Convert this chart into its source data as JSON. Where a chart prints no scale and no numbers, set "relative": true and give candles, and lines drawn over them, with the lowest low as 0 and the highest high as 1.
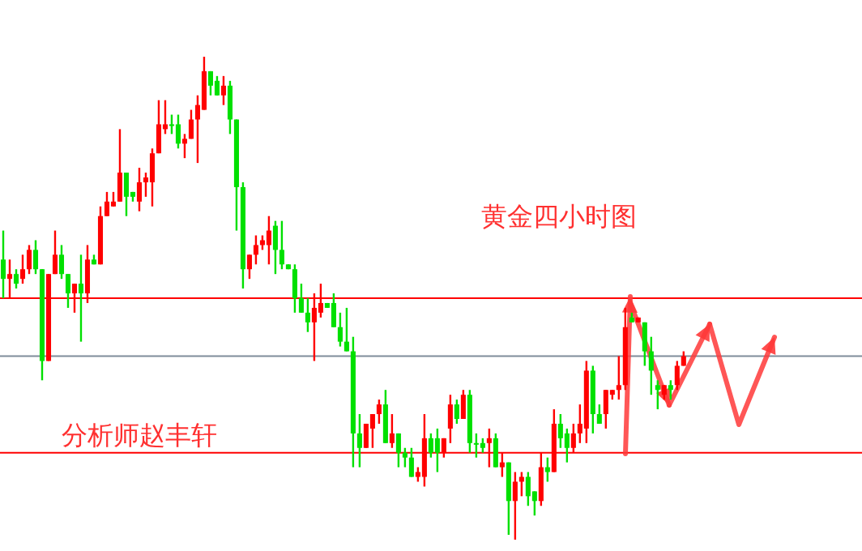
{
  "chart_data": {
    "type": "candlestick",
    "title": "黄金四小时图",
    "relative": true,
    "annotations": [
      "分析师赵丰轩"
    ],
    "ref_lines": [
      {
        "axis": "y",
        "value": 0.5,
        "label": null,
        "color": "#ff0000"
      },
      {
        "axis": "y",
        "value": 0.38,
        "label": null,
        "color": "#7f8c9a"
      },
      {
        "axis": "y",
        "value": 0.18,
        "label": null,
        "color": "#ff0000"
      }
    ],
    "categories": [
      null,
      null,
      null,
      null,
      null,
      null,
      null,
      null,
      null,
      null,
      null,
      null,
      null,
      null,
      null,
      null,
      null,
      null,
      null,
      null,
      null,
      null,
      null,
      null,
      null,
      null,
      null,
      null,
      null,
      null,
      null,
      null,
      null,
      null,
      null,
      null,
      null,
      null,
      null,
      null,
      null,
      null,
      null,
      null,
      null,
      null,
      null,
      null,
      null,
      null,
      null,
      null,
      null,
      null,
      null,
      null,
      null,
      null,
      null,
      null,
      null,
      null,
      null,
      null,
      null,
      null,
      null,
      null,
      null,
      null,
      null,
      null,
      null,
      null,
      null,
      null,
      null,
      null,
      null,
      null,
      null,
      null,
      null,
      null,
      null,
      null,
      null,
      null,
      null,
      null,
      null,
      null,
      null,
      null,
      null,
      null,
      null,
      null,
      null,
      null,
      null,
      null,
      null,
      null,
      null,
      null
    ],
    "ohlc": [
      [
        0.58,
        0.64,
        0.5,
        0.54
      ],
      [
        0.54,
        0.58,
        0.5,
        0.55
      ],
      [
        0.55,
        0.56,
        0.52,
        0.53
      ],
      [
        0.54,
        0.59,
        0.53,
        0.56
      ],
      [
        0.56,
        0.61,
        0.55,
        0.6
      ],
      [
        0.6,
        0.62,
        0.55,
        0.56
      ],
      [
        0.56,
        0.56,
        0.33,
        0.37
      ],
      [
        0.37,
        0.55,
        0.37,
        0.55
      ],
      [
        0.55,
        0.64,
        0.55,
        0.59
      ],
      [
        0.59,
        0.61,
        0.54,
        0.55
      ],
      [
        0.55,
        0.55,
        0.48,
        0.51
      ],
      [
        0.51,
        0.53,
        0.47,
        0.53
      ],
      [
        0.53,
        0.59,
        0.41,
        0.51
      ],
      [
        0.51,
        0.61,
        0.49,
        0.58
      ],
      [
        0.58,
        0.59,
        0.57,
        0.57
      ],
      [
        0.57,
        0.69,
        0.57,
        0.67
      ],
      [
        0.67,
        0.72,
        0.67,
        0.7
      ],
      [
        0.69,
        0.72,
        0.69,
        0.7
      ],
      [
        0.7,
        0.85,
        0.7,
        0.76
      ],
      [
        0.76,
        0.76,
        0.67,
        0.71
      ],
      [
        0.72,
        0.72,
        0.7,
        0.71
      ],
      [
        0.7,
        0.77,
        0.68,
        0.74
      ],
      [
        0.74,
        0.76,
        0.71,
        0.75
      ],
      [
        0.74,
        0.81,
        0.69,
        0.8
      ],
      [
        0.8,
        0.91,
        0.8,
        0.86
      ],
      [
        0.85,
        0.91,
        0.84,
        0.86
      ],
      [
        0.86,
        0.88,
        0.84,
        0.86
      ],
      [
        0.86,
        0.88,
        0.81,
        0.82
      ],
      [
        0.82,
        0.84,
        0.79,
        0.83
      ],
      [
        0.83,
        0.89,
        0.83,
        0.87
      ],
      [
        0.87,
        0.92,
        0.78,
        0.9
      ],
      [
        0.89,
        1.0,
        0.89,
        0.97
      ],
      [
        0.97,
        0.97,
        0.92,
        0.94
      ],
      [
        0.95,
        0.96,
        0.92,
        0.92
      ],
      [
        0.92,
        0.96,
        0.9,
        0.94
      ],
      [
        0.94,
        0.95,
        0.84,
        0.87
      ],
      [
        0.87,
        0.87,
        0.64,
        0.73
      ],
      [
        0.73,
        0.74,
        0.52,
        0.56
      ],
      [
        0.56,
        0.59,
        0.54,
        0.59
      ],
      [
        0.59,
        0.63,
        0.57,
        0.61
      ],
      [
        0.61,
        0.63,
        0.6,
        0.62
      ],
      [
        0.61,
        0.67,
        0.57,
        0.64
      ],
      [
        0.65,
        0.66,
        0.55,
        0.6
      ],
      [
        0.6,
        0.66,
        0.56,
        0.57
      ],
      [
        0.57,
        0.57,
        0.56,
        0.56
      ],
      [
        0.56,
        0.57,
        0.47,
        0.5
      ],
      [
        0.5,
        0.53,
        0.47,
        0.47
      ],
      [
        0.47,
        0.5,
        0.43,
        0.45
      ],
      [
        0.45,
        0.51,
        0.37,
        0.48
      ],
      [
        0.47,
        0.53,
        0.46,
        0.49
      ],
      [
        0.49,
        0.49,
        0.48,
        0.48
      ],
      [
        0.49,
        0.51,
        0.44,
        0.44
      ],
      [
        0.44,
        0.47,
        0.4,
        0.41
      ],
      [
        0.41,
        0.48,
        0.39,
        0.39
      ],
      [
        0.39,
        0.42,
        0.15,
        0.22
      ],
      [
        0.22,
        0.26,
        0.15,
        0.19
      ],
      [
        0.19,
        0.24,
        0.19,
        0.24
      ],
      [
        0.23,
        0.26,
        0.19,
        0.26
      ],
      [
        0.26,
        0.29,
        0.24,
        0.28
      ],
      [
        0.28,
        0.31,
        0.2,
        0.2
      ],
      [
        0.2,
        0.26,
        0.19,
        0.22
      ],
      [
        0.22,
        0.22,
        0.15,
        0.18
      ],
      [
        0.18,
        0.19,
        0.15,
        0.17
      ],
      [
        0.17,
        0.19,
        0.13,
        0.13
      ],
      [
        0.13,
        0.15,
        0.12,
        0.14
      ],
      [
        0.13,
        0.26,
        0.11,
        0.21
      ],
      [
        0.21,
        0.22,
        0.17,
        0.18
      ],
      [
        0.21,
        0.23,
        0.14,
        0.18
      ],
      [
        0.18,
        0.21,
        0.17,
        0.21
      ],
      [
        0.23,
        0.3,
        0.2,
        0.28
      ],
      [
        0.28,
        0.29,
        0.24,
        0.25
      ],
      [
        0.25,
        0.31,
        0.25,
        0.3
      ],
      [
        0.3,
        0.31,
        0.18,
        0.2
      ],
      [
        0.2,
        0.22,
        0.17,
        0.2
      ],
      [
        0.2,
        0.21,
        0.18,
        0.19
      ],
      [
        0.2,
        0.23,
        0.15,
        0.21
      ],
      [
        0.21,
        0.22,
        0.15,
        0.15
      ],
      [
        0.15,
        0.18,
        0.13,
        0.16
      ],
      [
        0.16,
        0.16,
        0.01,
        0.08
      ],
      [
        0.08,
        0.14,
        0.0,
        0.12
      ],
      [
        0.12,
        0.14,
        0.09,
        0.13
      ],
      [
        0.13,
        0.14,
        0.07,
        0.09
      ],
      [
        0.1,
        0.1,
        0.05,
        0.08
      ],
      [
        0.08,
        0.18,
        0.07,
        0.15
      ],
      [
        0.15,
        0.17,
        0.12,
        0.14
      ],
      [
        0.14,
        0.27,
        0.14,
        0.24
      ],
      [
        0.24,
        0.26,
        0.19,
        0.21
      ],
      [
        0.22,
        0.23,
        0.16,
        0.19
      ],
      [
        0.19,
        0.24,
        0.18,
        0.22
      ],
      [
        0.22,
        0.28,
        0.2,
        0.24
      ],
      [
        0.23,
        0.37,
        0.2,
        0.35
      ],
      [
        0.35,
        0.36,
        0.22,
        0.26
      ],
      [
        0.26,
        0.28,
        0.24,
        0.24
      ],
      [
        0.26,
        0.31,
        0.23,
        0.31
      ],
      [
        0.3,
        0.31,
        0.29,
        0.31
      ],
      [
        0.31,
        0.38,
        0.29,
        0.32
      ],
      [
        0.32,
        0.48,
        0.31,
        0.44
      ],
      [
        0.46,
        0.47,
        0.45,
        0.45
      ],
      [
        0.45,
        0.46,
        0.45,
        0.46
      ],
      [
        0.45,
        0.45,
        0.36,
        0.39
      ],
      [
        0.39,
        0.42,
        0.3,
        0.35
      ],
      [
        0.32,
        0.33,
        0.27,
        0.31
      ],
      [
        0.3,
        0.32,
        0.29,
        0.32
      ],
      [
        0.32,
        0.33,
        0.29,
        0.31
      ],
      [
        0.32,
        0.37,
        0.31,
        0.36
      ],
      [
        0.36,
        0.39,
        0.36,
        0.38
      ]
    ],
    "colors": [
      "#00e000",
      "#ff0000",
      "#00e000",
      "#ff0000",
      "#ff0000",
      "#00e000",
      "#00e000",
      "#ff0000",
      "#ff0000",
      "#00e000",
      "#00e000",
      "#ff0000",
      "#00e000",
      "#ff0000",
      "#00e000",
      "#ff0000",
      "#ff0000",
      "#ff0000",
      "#ff0000",
      "#00e000",
      "#00e000",
      "#ff0000",
      "#ff0000",
      "#ff0000",
      "#ff0000",
      "#ff0000",
      "#00e000",
      "#00e000",
      "#ff0000",
      "#ff0000",
      "#ff0000",
      "#ff0000",
      "#00e000",
      "#00e000",
      "#ff0000",
      "#00e000",
      "#00e000",
      "#00e000",
      "#ff0000",
      "#ff0000",
      "#ff0000",
      "#ff0000",
      "#00e000",
      "#00e000",
      "#00e000",
      "#00e000",
      "#00e000",
      "#00e000",
      "#ff0000",
      "#ff0000",
      "#00e000",
      "#00e000",
      "#00e000",
      "#00e000",
      "#00e000",
      "#00e000",
      "#ff0000",
      "#ff0000",
      "#ff0000",
      "#00e000",
      "#ff0000",
      "#00e000",
      "#00e000",
      "#00e000",
      "#ff0000",
      "#ff0000",
      "#00e000",
      "#00e000",
      "#ff0000",
      "#ff0000",
      "#00e000",
      "#ff0000",
      "#00e000",
      "#00e000",
      "#00e000",
      "#ff0000",
      "#00e000",
      "#ff0000",
      "#00e000",
      "#ff0000",
      "#ff0000",
      "#00e000",
      "#00e000",
      "#ff0000",
      "#00e000",
      "#ff0000",
      "#00e000",
      "#00e000",
      "#ff0000",
      "#ff0000",
      "#ff0000",
      "#00e000",
      "#00e000",
      "#ff0000",
      "#ff0000",
      "#ff0000",
      "#ff0000",
      "#00e000",
      "#ff0000",
      "#00e000",
      "#00e000",
      "#00e000",
      "#ff0000",
      "#00e000",
      "#ff0000",
      "#ff0000"
    ]
  }
}
